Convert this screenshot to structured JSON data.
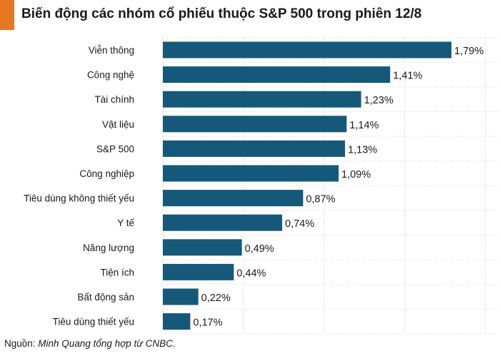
{
  "title": "Biến động các nhóm cổ phiếu thuộc S&P 500 trong phiên 12/8",
  "accent_color": "#e87722",
  "bar_color": "#15587a",
  "source": {
    "prefix": "Nguồn: ",
    "text": "Minh Quang tổng hợp từ CNBC."
  },
  "chart_data": {
    "type": "bar",
    "orientation": "horizontal",
    "categories": [
      "Viễn thông",
      "Công nghệ",
      "Tài chính",
      "Vật liệu",
      "S&P 500",
      "Công nghiệp",
      "Tiêu dùng không thiết yếu",
      "Y tế",
      "Năng lượng",
      "Tiện ích",
      "Bất động sản",
      "Tiêu dùng thiết yếu"
    ],
    "values": [
      1.79,
      1.41,
      1.23,
      1.14,
      1.13,
      1.09,
      0.87,
      0.74,
      0.49,
      0.44,
      0.22,
      0.17
    ],
    "value_labels": [
      "1,79%",
      "1,41%",
      "1,23%",
      "1,14%",
      "1,13%",
      "1,09%",
      "0,87%",
      "0,74%",
      "0,49%",
      "0,44%",
      "0,22%",
      "0,17%"
    ],
    "xlim": [
      0,
      2
    ],
    "grid": "vertical dotted",
    "legend": "none"
  }
}
